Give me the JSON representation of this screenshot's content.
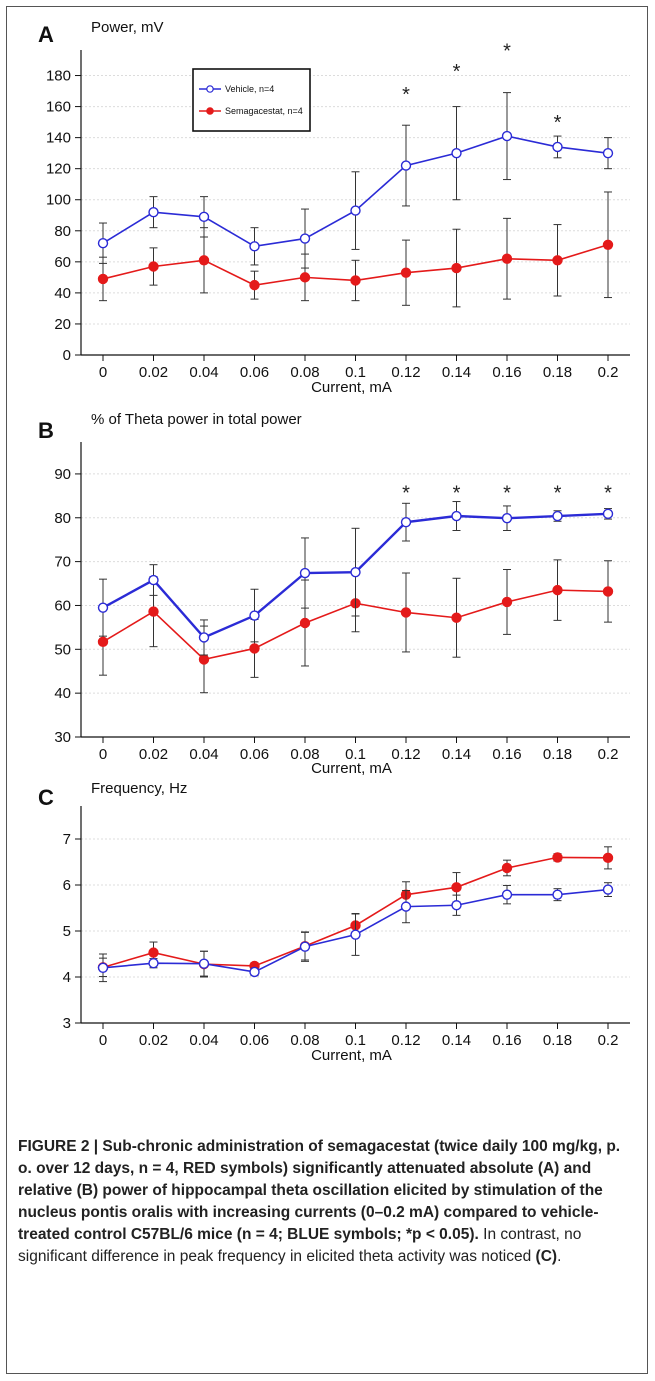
{
  "chart_data": [
    {
      "type": "line",
      "panel": "A",
      "title": "Power, mV",
      "xlabel": "Current, mA",
      "ylabel": "",
      "x": [
        0,
        0.02,
        0.04,
        0.06,
        0.08,
        0.1,
        0.12,
        0.14,
        0.16,
        0.18,
        0.2
      ],
      "x_tick_labels": [
        "0",
        "0.02",
        "0.04",
        "0.06",
        "0.08",
        "0.1",
        "0.12",
        "0.14",
        "0.16",
        "0.18",
        "0.2"
      ],
      "ylim": [
        0,
        190
      ],
      "yticks": [
        0,
        20,
        40,
        60,
        80,
        100,
        120,
        140,
        160,
        180
      ],
      "grid": true,
      "legend": "top-left",
      "series": [
        {
          "name": "Vehicle, n=4",
          "color": "#2b2bd6",
          "marker": "open-circle",
          "values": [
            72,
            92,
            89,
            70,
            75,
            93,
            122,
            130,
            141,
            134,
            130
          ],
          "errors": [
            13,
            10,
            13,
            12,
            19,
            25,
            26,
            30,
            28,
            7,
            10
          ]
        },
        {
          "name": "Semagacestat, n=4",
          "color": "#e41a1a",
          "marker": "filled-circle",
          "values": [
            49,
            57,
            61,
            45,
            50,
            48,
            53,
            56,
            62,
            61,
            71
          ],
          "errors": [
            14,
            12,
            21,
            9,
            15,
            13,
            21,
            25,
            26,
            23,
            34
          ]
        }
      ],
      "significance": {
        "symbol": "*",
        "x": [
          0.12,
          0.14,
          0.16,
          0.18
        ],
        "y": [
          170,
          185,
          198,
          152
        ]
      }
    },
    {
      "type": "line",
      "panel": "B",
      "title": "% of Theta power in total power",
      "xlabel": "Current, mA",
      "ylabel": "",
      "x": [
        0,
        0.02,
        0.04,
        0.06,
        0.08,
        0.1,
        0.12,
        0.14,
        0.16,
        0.18,
        0.2
      ],
      "x_tick_labels": [
        "0",
        "0.02",
        "0.04",
        "0.06",
        "0.08",
        "0.1",
        "0.12",
        "0.14",
        "0.16",
        "0.18",
        "0.2"
      ],
      "ylim": [
        30,
        95
      ],
      "yticks": [
        30,
        40,
        50,
        60,
        70,
        80,
        90
      ],
      "grid": true,
      "series": [
        {
          "name": "Vehicle",
          "color": "#2b2bd6",
          "marker": "open-circle",
          "values": [
            59.5,
            65.8,
            52.7,
            57.7,
            67.4,
            67.6,
            79.0,
            80.4,
            79.9,
            80.4,
            80.9
          ],
          "errors": [
            6.5,
            3.5,
            4,
            6,
            8,
            10,
            4.3,
            3.3,
            2.8,
            1.2,
            1.2
          ]
        },
        {
          "name": "Semagacestat",
          "color": "#e41a1a",
          "marker": "filled-circle",
          "values": [
            51.7,
            58.6,
            47.7,
            50.2,
            56.0,
            60.5,
            58.4,
            57.2,
            60.8,
            63.5,
            63.2
          ],
          "errors": [
            7.6,
            8,
            7.6,
            6.6,
            9.8,
            6.5,
            9,
            9,
            7.4,
            6.9,
            7
          ]
        }
      ],
      "significance": {
        "symbol": "*",
        "x": [
          0.12,
          0.14,
          0.16,
          0.18,
          0.2
        ],
        "y": [
          86.5,
          86.5,
          86.5,
          86.5,
          86.5
        ]
      }
    },
    {
      "type": "line",
      "panel": "C",
      "title": "Frequency, Hz",
      "xlabel": "Current, mA",
      "ylabel": "",
      "x": [
        0,
        0.02,
        0.04,
        0.06,
        0.08,
        0.1,
        0.12,
        0.14,
        0.16,
        0.18,
        0.2
      ],
      "x_tick_labels": [
        "0",
        "0.02",
        "0.04",
        "0.06",
        "0.08",
        "0.1",
        "0.12",
        "0.14",
        "0.16",
        "0.18",
        "0.2"
      ],
      "ylim": [
        3,
        7.5
      ],
      "yticks": [
        3,
        4,
        5,
        6,
        7
      ],
      "grid": true,
      "series": [
        {
          "name": "Vehicle",
          "color": "#2b2bd6",
          "marker": "open-circle",
          "values": [
            4.2,
            4.3,
            4.29,
            4.11,
            4.66,
            4.92,
            5.53,
            5.56,
            5.79,
            5.79,
            5.9
          ],
          "errors": [
            0.3,
            0.1,
            0.27,
            0.08,
            0.32,
            0.45,
            0.35,
            0.22,
            0.2,
            0.13,
            0.15
          ]
        },
        {
          "name": "Semagacestat",
          "color": "#e41a1a",
          "marker": "filled-circle",
          "values": [
            4.21,
            4.53,
            4.28,
            4.24,
            4.67,
            5.12,
            5.79,
            5.95,
            6.37,
            6.6,
            6.59
          ],
          "errors": [
            0.2,
            0.23,
            0.28,
            0.07,
            0.3,
            0.26,
            0.28,
            0.32,
            0.17,
            0.08,
            0.24
          ]
        }
      ]
    }
  ],
  "caption": {
    "bold": "FIGURE 2 | Sub-chronic administration of semagacestat (twice daily 100 mg/kg, p. o. over 12 days, n = 4, RED symbols) significantly attenuated absolute (A) and relative (B) power of hippocampal theta oscillation elicited by stimulation of the nucleus pontis oralis with increasing currents (0–0.2 mA) compared to vehicle-treated control C57BL/6 mice (n = 4; BLUE symbols; *p < 0.05).",
    "normal": " In contrast, no significant difference in peak frequency in elicited theta activity was noticed ",
    "end_bold": "(C)",
    "end": "."
  }
}
